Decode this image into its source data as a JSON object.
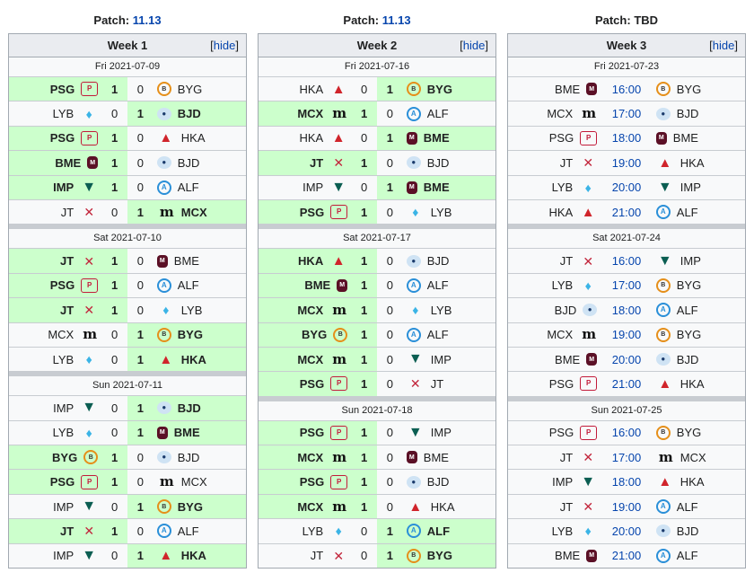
{
  "hide_label": "hide",
  "weeks": [
    {
      "patch_label": "Patch:",
      "patch_value": "11.13",
      "patch_is_link": true,
      "title": "Week 1",
      "days": [
        {
          "date": "Fri 2021-07-09",
          "matches": [
            {
              "left": "PSG",
              "right": "BYG",
              "ls": "1",
              "rs": "0"
            },
            {
              "left": "LYB",
              "right": "BJD",
              "ls": "0",
              "rs": "1"
            },
            {
              "left": "PSG",
              "right": "HKA",
              "ls": "1",
              "rs": "0"
            },
            {
              "left": "BME",
              "right": "BJD",
              "ls": "1",
              "rs": "0"
            },
            {
              "left": "IMP",
              "right": "ALF",
              "ls": "1",
              "rs": "0"
            },
            {
              "left": "JT",
              "right": "MCX",
              "ls": "0",
              "rs": "1"
            }
          ]
        },
        {
          "date": "Sat 2021-07-10",
          "matches": [
            {
              "left": "JT",
              "right": "BME",
              "ls": "1",
              "rs": "0"
            },
            {
              "left": "PSG",
              "right": "ALF",
              "ls": "1",
              "rs": "0"
            },
            {
              "left": "JT",
              "right": "LYB",
              "ls": "1",
              "rs": "0"
            },
            {
              "left": "MCX",
              "right": "BYG",
              "ls": "0",
              "rs": "1"
            },
            {
              "left": "LYB",
              "right": "HKA",
              "ls": "0",
              "rs": "1"
            }
          ]
        },
        {
          "date": "Sun 2021-07-11",
          "matches": [
            {
              "left": "IMP",
              "right": "BJD",
              "ls": "0",
              "rs": "1"
            },
            {
              "left": "LYB",
              "right": "BME",
              "ls": "0",
              "rs": "1"
            },
            {
              "left": "BYG",
              "right": "BJD",
              "ls": "1",
              "rs": "0"
            },
            {
              "left": "PSG",
              "right": "MCX",
              "ls": "1",
              "rs": "0"
            },
            {
              "left": "IMP",
              "right": "BYG",
              "ls": "0",
              "rs": "1"
            },
            {
              "left": "JT",
              "right": "ALF",
              "ls": "1",
              "rs": "0"
            },
            {
              "left": "IMP",
              "right": "HKA",
              "ls": "0",
              "rs": "1"
            }
          ]
        }
      ]
    },
    {
      "patch_label": "Patch:",
      "patch_value": "11.13",
      "patch_is_link": true,
      "title": "Week 2",
      "days": [
        {
          "date": "Fri 2021-07-16",
          "matches": [
            {
              "left": "HKA",
              "right": "BYG",
              "ls": "0",
              "rs": "1"
            },
            {
              "left": "MCX",
              "right": "ALF",
              "ls": "1",
              "rs": "0"
            },
            {
              "left": "HKA",
              "right": "BME",
              "ls": "0",
              "rs": "1"
            },
            {
              "left": "JT",
              "right": "BJD",
              "ls": "1",
              "rs": "0"
            },
            {
              "left": "IMP",
              "right": "BME",
              "ls": "0",
              "rs": "1"
            },
            {
              "left": "PSG",
              "right": "LYB",
              "ls": "1",
              "rs": "0"
            }
          ]
        },
        {
          "date": "Sat 2021-07-17",
          "matches": [
            {
              "left": "HKA",
              "right": "BJD",
              "ls": "1",
              "rs": "0"
            },
            {
              "left": "BME",
              "right": "ALF",
              "ls": "1",
              "rs": "0"
            },
            {
              "left": "MCX",
              "right": "LYB",
              "ls": "1",
              "rs": "0"
            },
            {
              "left": "BYG",
              "right": "ALF",
              "ls": "1",
              "rs": "0"
            },
            {
              "left": "MCX",
              "right": "IMP",
              "ls": "1",
              "rs": "0"
            },
            {
              "left": "PSG",
              "right": "JT",
              "ls": "1",
              "rs": "0"
            }
          ]
        },
        {
          "date": "Sun 2021-07-18",
          "matches": [
            {
              "left": "PSG",
              "right": "IMP",
              "ls": "1",
              "rs": "0"
            },
            {
              "left": "MCX",
              "right": "BME",
              "ls": "1",
              "rs": "0"
            },
            {
              "left": "PSG",
              "right": "BJD",
              "ls": "1",
              "rs": "0"
            },
            {
              "left": "MCX",
              "right": "HKA",
              "ls": "1",
              "rs": "0"
            },
            {
              "left": "LYB",
              "right": "ALF",
              "ls": "0",
              "rs": "1"
            },
            {
              "left": "JT",
              "right": "BYG",
              "ls": "0",
              "rs": "1"
            }
          ]
        }
      ]
    },
    {
      "patch_label": "Patch:",
      "patch_value": "TBD",
      "patch_is_link": false,
      "title": "Week 3",
      "days": [
        {
          "date": "Fri 2021-07-23",
          "matches": [
            {
              "left": "BME",
              "right": "BYG",
              "time": "16:00"
            },
            {
              "left": "MCX",
              "right": "BJD",
              "time": "17:00"
            },
            {
              "left": "PSG",
              "right": "BME",
              "time": "18:00"
            },
            {
              "left": "JT",
              "right": "HKA",
              "time": "19:00"
            },
            {
              "left": "LYB",
              "right": "IMP",
              "time": "20:00"
            },
            {
              "left": "HKA",
              "right": "ALF",
              "time": "21:00"
            }
          ]
        },
        {
          "date": "Sat 2021-07-24",
          "matches": [
            {
              "left": "JT",
              "right": "IMP",
              "time": "16:00"
            },
            {
              "left": "LYB",
              "right": "BYG",
              "time": "17:00"
            },
            {
              "left": "BJD",
              "right": "ALF",
              "time": "18:00"
            },
            {
              "left": "MCX",
              "right": "BYG",
              "time": "19:00"
            },
            {
              "left": "BME",
              "right": "BJD",
              "time": "20:00"
            },
            {
              "left": "PSG",
              "right": "HKA",
              "time": "21:00"
            }
          ]
        },
        {
          "date": "Sun 2021-07-25",
          "matches": [
            {
              "left": "PSG",
              "right": "BYG",
              "time": "16:00"
            },
            {
              "left": "JT",
              "right": "MCX",
              "time": "17:00"
            },
            {
              "left": "IMP",
              "right": "HKA",
              "time": "18:00"
            },
            {
              "left": "JT",
              "right": "ALF",
              "time": "19:00"
            },
            {
              "left": "LYB",
              "right": "BJD",
              "time": "20:00"
            },
            {
              "left": "BME",
              "right": "ALF",
              "time": "21:00"
            }
          ]
        }
      ]
    }
  ],
  "team_logos": {
    "PSG": {
      "icon": "psg-logo-icon",
      "glyph": "P"
    },
    "BYG": {
      "icon": "byg-logo-icon",
      "glyph": "B"
    },
    "LYB": {
      "icon": "lyb-logo-icon",
      "glyph": "♦"
    },
    "BJD": {
      "icon": "bjd-logo-icon",
      "glyph": "●"
    },
    "HKA": {
      "icon": "hka-logo-icon",
      "glyph": "▲"
    },
    "BME": {
      "icon": "bme-logo-icon",
      "glyph": "M"
    },
    "IMP": {
      "icon": "imp-logo-icon",
      "glyph": "▼"
    },
    "ALF": {
      "icon": "alf-logo-icon",
      "glyph": "A"
    },
    "JT": {
      "icon": "jt-logo-icon",
      "glyph": "✕"
    },
    "MCX": {
      "icon": "mcx-logo-icon",
      "glyph": "m"
    }
  }
}
